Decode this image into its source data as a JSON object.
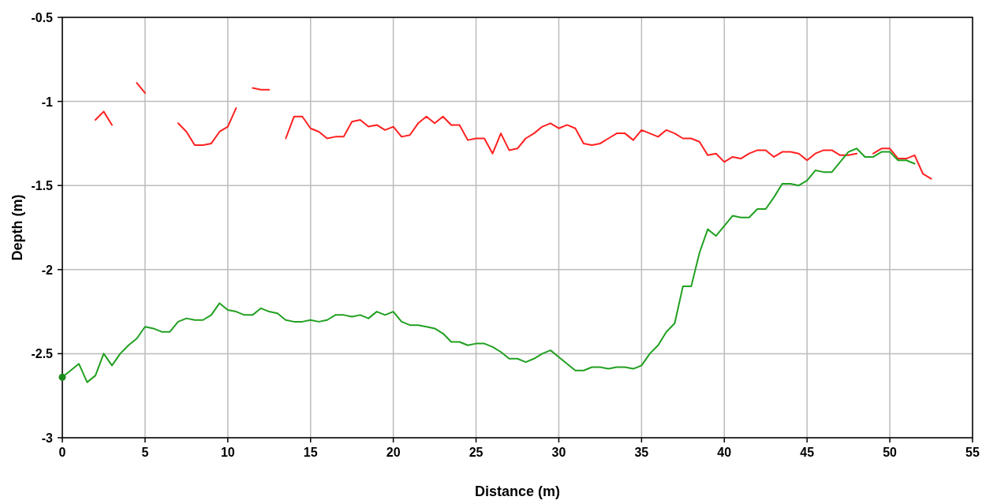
{
  "chart_data": {
    "type": "line",
    "xlabel": "Distance (m)",
    "ylabel": "Depth (m)",
    "xlim": [
      0,
      55
    ],
    "ylim": [
      -3,
      -0.5
    ],
    "xticks": [
      0,
      5,
      10,
      15,
      20,
      25,
      30,
      35,
      40,
      45,
      50,
      55
    ],
    "yticks": [
      -3,
      -2.5,
      -2,
      -1.5,
      -1,
      -0.5
    ],
    "grid": true,
    "line_style": "solid",
    "series": [
      {
        "color": "#ff2020",
        "x": [
          2,
          2.5,
          3,
          3.5,
          4,
          4.5,
          5,
          5.5,
          6,
          6.5,
          7,
          7.5,
          8,
          8.5,
          9,
          9.5,
          10,
          10.5,
          11,
          11.5,
          12,
          12.5,
          13,
          13.5,
          14,
          14.5,
          15,
          15.5,
          16,
          16.5,
          17,
          17.5,
          18,
          18.5,
          19,
          19.5,
          20,
          20.5,
          21,
          21.5,
          22,
          22.5,
          23,
          23.5,
          24,
          24.5,
          25,
          25.5,
          26,
          26.5,
          27,
          27.5,
          28,
          28.5,
          29,
          29.5,
          30,
          30.5,
          31,
          31.5,
          32,
          32.5,
          33,
          33.5,
          34,
          34.5,
          35,
          35.5,
          36,
          36.5,
          37,
          37.5,
          38,
          38.5,
          39,
          39.5,
          40,
          40.5,
          41,
          41.5,
          42,
          42.5,
          43,
          43.5,
          44,
          44.5,
          45,
          45.5,
          46,
          46.5,
          47,
          47.5,
          48,
          48.5,
          49,
          49.5,
          50,
          50.5,
          51,
          51.5,
          52,
          52.5
        ],
        "values": [
          -1.11,
          -1.06,
          -1.14,
          null,
          null,
          -0.89,
          -0.95,
          null,
          null,
          null,
          -1.13,
          -1.18,
          -1.26,
          -1.26,
          -1.25,
          -1.18,
          -1.15,
          -1.04,
          null,
          -0.92,
          -0.93,
          -0.93,
          null,
          -1.22,
          -1.09,
          -1.09,
          -1.16,
          -1.18,
          -1.22,
          -1.21,
          -1.21,
          -1.12,
          -1.11,
          -1.15,
          -1.14,
          -1.17,
          -1.15,
          -1.21,
          -1.2,
          -1.13,
          -1.09,
          -1.13,
          -1.09,
          -1.14,
          -1.14,
          -1.23,
          -1.22,
          -1.22,
          -1.31,
          -1.19,
          -1.29,
          -1.28,
          -1.22,
          -1.19,
          -1.15,
          -1.13,
          -1.16,
          -1.14,
          -1.16,
          -1.25,
          -1.26,
          -1.25,
          -1.22,
          -1.19,
          -1.19,
          -1.23,
          -1.17,
          -1.19,
          -1.21,
          -1.17,
          -1.19,
          -1.22,
          -1.22,
          -1.24,
          -1.32,
          -1.31,
          -1.36,
          -1.33,
          -1.34,
          -1.31,
          -1.29,
          -1.29,
          -1.33,
          -1.3,
          -1.3,
          -1.31,
          -1.35,
          -1.31,
          -1.29,
          -1.29,
          -1.32,
          -1.32,
          -1.31,
          null,
          -1.31,
          -1.28,
          -1.28,
          -1.34,
          -1.34,
          -1.32,
          -1.43,
          -1.46
        ]
      },
      {
        "color": "#20a020",
        "x": [
          0,
          0.5,
          1,
          1.5,
          2,
          2.5,
          3,
          3.5,
          4,
          4.5,
          5,
          5.5,
          6,
          6.5,
          7,
          7.5,
          8,
          8.5,
          9,
          9.5,
          10,
          10.5,
          11,
          11.5,
          12,
          12.5,
          13,
          13.5,
          14,
          14.5,
          15,
          15.5,
          16,
          16.5,
          17,
          17.5,
          18,
          18.5,
          19,
          19.5,
          20,
          20.5,
          21,
          21.5,
          22,
          22.5,
          23,
          23.5,
          24,
          24.5,
          25,
          25.5,
          26,
          26.5,
          27,
          27.5,
          28,
          28.5,
          29,
          29.5,
          30,
          30.5,
          31,
          31.5,
          32,
          32.5,
          33,
          33.5,
          34,
          34.5,
          35,
          35.5,
          36,
          36.5,
          37,
          37.5,
          38,
          38.5,
          39,
          39.5,
          40,
          40.5,
          41,
          41.5,
          42,
          42.5,
          43,
          43.5,
          44,
          44.5,
          45,
          45.5,
          46,
          46.5,
          47,
          47.5,
          48,
          48.5,
          49,
          49.5,
          50,
          50.5,
          51,
          51.5
        ],
        "values": [
          -2.64,
          -2.6,
          -2.56,
          -2.67,
          -2.63,
          -2.5,
          -2.57,
          -2.5,
          -2.45,
          -2.41,
          -2.34,
          -2.35,
          -2.37,
          -2.37,
          -2.31,
          -2.29,
          -2.3,
          -2.3,
          -2.27,
          -2.2,
          -2.24,
          -2.25,
          -2.27,
          -2.27,
          -2.23,
          -2.25,
          -2.26,
          -2.3,
          -2.31,
          -2.31,
          -2.3,
          -2.31,
          -2.3,
          -2.27,
          -2.27,
          -2.28,
          -2.27,
          -2.29,
          -2.25,
          -2.27,
          -2.25,
          -2.31,
          -2.33,
          -2.33,
          -2.34,
          -2.35,
          -2.38,
          -2.43,
          -2.43,
          -2.45,
          -2.44,
          -2.44,
          -2.46,
          -2.49,
          -2.53,
          -2.53,
          -2.55,
          -2.53,
          -2.5,
          -2.48,
          -2.52,
          -2.56,
          -2.6,
          -2.6,
          -2.58,
          -2.58,
          -2.59,
          -2.58,
          -2.58,
          -2.59,
          -2.57,
          -2.5,
          -2.45,
          -2.37,
          -2.32,
          -2.1,
          -2.1,
          -1.9,
          -1.76,
          -1.8,
          -1.74,
          -1.68,
          -1.69,
          -1.69,
          -1.64,
          -1.64,
          -1.57,
          -1.49,
          -1.49,
          -1.5,
          -1.47,
          -1.41,
          -1.42,
          -1.42,
          -1.36,
          -1.3,
          -1.28,
          -1.33,
          -1.33,
          -1.3,
          -1.3,
          -1.35,
          -1.35,
          -1.37
        ]
      },
      {
        "type": "scatter",
        "color": "#1a8a1a",
        "marker": "circle",
        "x": [
          0
        ],
        "values": [
          -2.64
        ]
      }
    ]
  }
}
